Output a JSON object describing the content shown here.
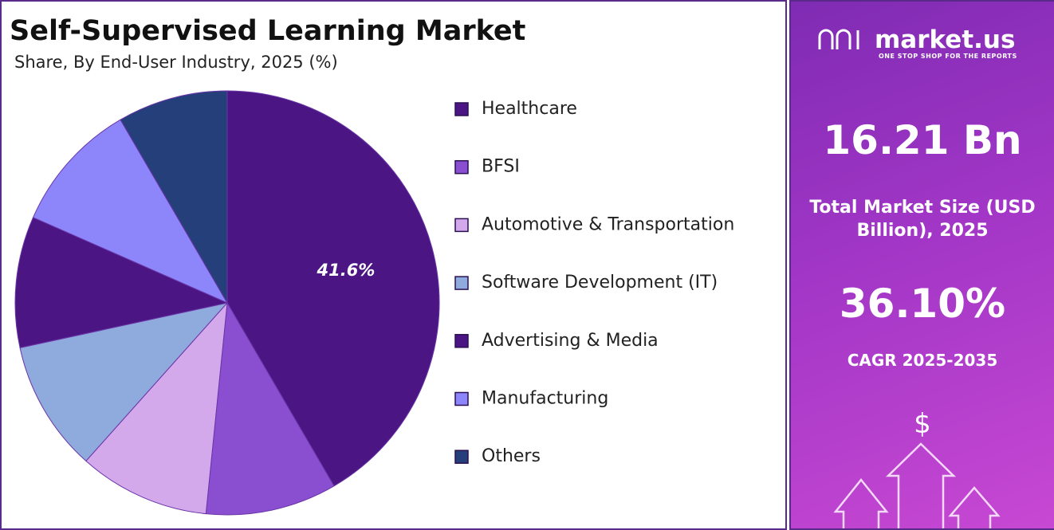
{
  "chart_data": {
    "type": "pie",
    "title": "Self-Supervised Learning Market",
    "subtitle": "Share, By End-User Industry, 2025 (%)",
    "categories": [
      "Healthcare",
      "BFSI",
      "Automotive & Transportation",
      "Software Development (IT)",
      "Advertising & Media",
      "Manufacturing",
      "Others"
    ],
    "values": [
      41.6,
      10,
      10,
      10,
      10,
      10,
      8.4
    ],
    "value_labels": [
      "41.6%",
      null,
      null,
      null,
      null,
      null,
      null
    ],
    "colors": [
      "#4b1683",
      "#8a4fd0",
      "#d4a9ec",
      "#8faadc",
      "#4b1683",
      "#8d86fb",
      "#253f7a"
    ],
    "legend": "right"
  },
  "sidebar": {
    "brand": "market.us",
    "tagline": "ONE STOP SHOP FOR THE REPORTS",
    "market_size": "16.21 Bn",
    "market_size_label": "Total Market Size (USD Billion), 2025",
    "cagr": "36.10%",
    "cagr_label": "CAGR 2025-2035",
    "currency_symbol": "$"
  }
}
